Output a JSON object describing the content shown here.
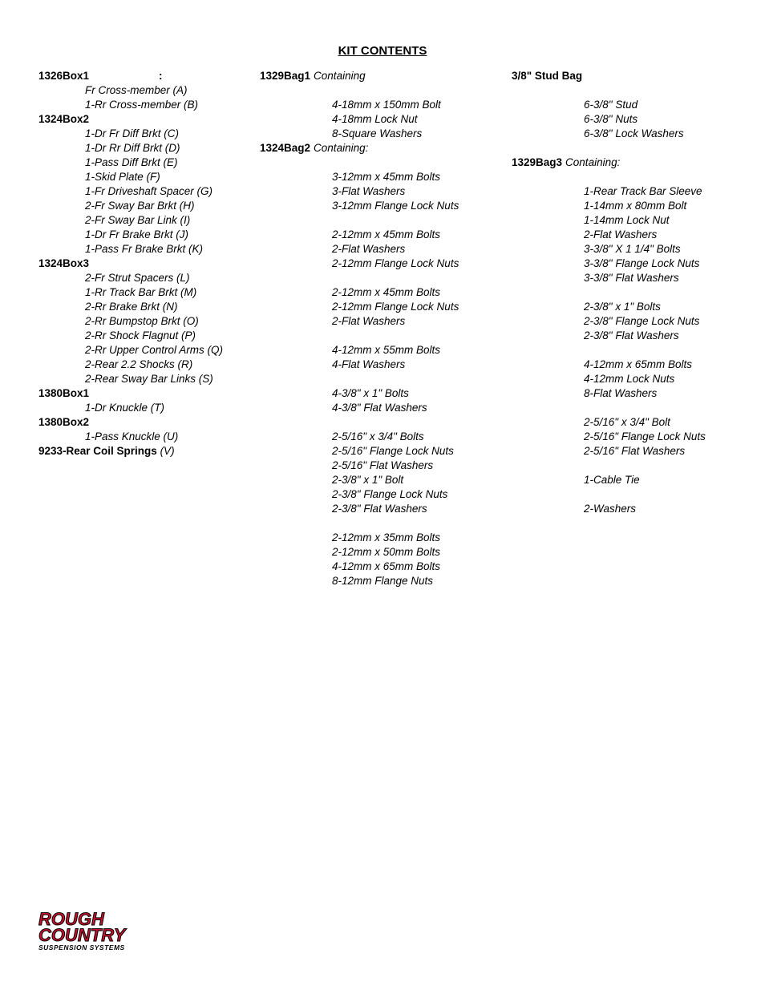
{
  "title": "KIT CONTENTS",
  "col1": {
    "box1326": {
      "title": "1326Box1",
      "colon": ":",
      "items": [
        "Fr Cross-member (A)",
        "1-Rr Cross-member (B)"
      ]
    },
    "box1324_2": {
      "title": "1324Box2",
      "items": [
        "1-Dr Fr Diff Brkt (C)",
        "1-Dr Rr Diff Brkt (D)",
        "1-Pass Diff Brkt (E)",
        "1-Skid Plate (F)",
        "1-Fr Driveshaft Spacer (G)",
        "2-Fr Sway Bar Brkt (H)",
        "2-Fr Sway Bar Link (I)",
        "1-Dr Fr Brake Brkt (J)",
        "1-Pass Fr Brake Brkt (K)"
      ]
    },
    "box1324_3": {
      "title": "1324Box3",
      "items": [
        "2-Fr Strut Spacers (L)",
        "1-Rr Track Bar Brkt (M)",
        "2-Rr Brake Brkt (N)",
        "2-Rr Bumpstop  Brkt (O)",
        "2-Rr Shock Flagnut (P)",
        "2-Rr Upper Control Arms (Q)",
        "2-Rear 2.2 Shocks (R)",
        "2-Rear Sway Bar Links (S)"
      ]
    },
    "box1380_1": {
      "title": "1380Box1",
      "items": [
        "1-Dr Knuckle (T)"
      ]
    },
    "box1380_2": {
      "title": "1380Box2",
      "items": [
        "1-Pass Knuckle (U)"
      ]
    },
    "coil": {
      "title": "9233-Rear Coil Springs ",
      "tail": "(V)"
    }
  },
  "col2": {
    "bag1": {
      "title": "1329Bag1",
      "tail": "Containing",
      "g1": [
        "4-18mm x 150mm Bolt",
        "4-18mm Lock Nut",
        "8-Square Washers"
      ]
    },
    "bag2": {
      "title": "1324Bag2",
      "tail": "Containing:",
      "g1": [
        "3-12mm x 45mm Bolts",
        "3-Flat Washers",
        "3-12mm Flange Lock Nuts"
      ],
      "g2": [
        "2-12mm x 45mm Bolts",
        "2-Flat Washers",
        "2-12mm Flange Lock Nuts"
      ],
      "g3": [
        "2-12mm x 45mm Bolts",
        "2-12mm Flange Lock Nuts",
        "2-Flat Washers"
      ],
      "g4": [
        "4-12mm x 55mm Bolts",
        "4-Flat Washers"
      ],
      "g5": [
        "4-3/8\" x 1\" Bolts",
        "4-3/8\" Flat Washers"
      ],
      "g6": [
        "2-5/16\" x 3/4\" Bolts",
        "2-5/16\" Flange Lock Nuts",
        "2-5/16\" Flat Washers",
        "2-3/8\" x 1\" Bolt",
        "2-3/8\" Flange Lock Nuts",
        "2-3/8\" Flat Washers"
      ],
      "g7": [
        "2-12mm x 35mm Bolts",
        "2-12mm x 50mm Bolts",
        "4-12mm x 65mm Bolts",
        "8-12mm Flange Nuts"
      ]
    }
  },
  "col3": {
    "stud": {
      "title": "3/8\" Stud Bag",
      "items": [
        "6-3/8\" Stud",
        "6-3/8\"  Nuts",
        "6-3/8\"  Lock Washers"
      ]
    },
    "bag3": {
      "title": "1329Bag3",
      "tail": "Containing:",
      "g1": [
        "1-Rear Track Bar Sleeve",
        "1-14mm x 80mm Bolt",
        "1-14mm Lock Nut",
        "2-Flat Washers",
        "3-3/8\" X 1 1/4\" Bolts",
        "3-3/8\" Flange Lock Nuts",
        "3-3/8\" Flat Washers"
      ],
      "g2": [
        "2-3/8\" x 1\" Bolts",
        "2-3/8\" Flange Lock Nuts",
        "2-3/8\" Flat Washers"
      ],
      "g3": [
        "4-12mm x 65mm Bolts",
        "4-12mm Lock Nuts",
        "8-Flat Washers"
      ],
      "g4": [
        "2-5/16\" x  3/4\" Bolt",
        "2-5/16\" Flange Lock Nuts",
        "2-5/16\" Flat Washers"
      ],
      "g5": [
        "1-Cable Tie"
      ],
      "g6": [
        "2-Washers"
      ]
    }
  },
  "logo": {
    "line1": "ROUGH",
    "line2": "COUNTRY",
    "line3": "SUSPENSION SYSTEMS",
    "red": "#c8102e",
    "black": "#000000"
  }
}
